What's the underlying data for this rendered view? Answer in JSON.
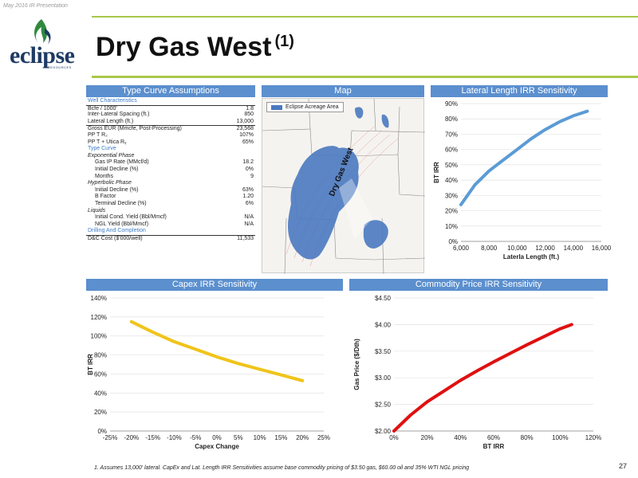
{
  "header": {
    "date_label": "May 2016 IR Presentation",
    "title": "Dry Gas West",
    "title_note": "(1)",
    "logo_text": "eclipse",
    "logo_sub": "RESOURCES"
  },
  "panels": {
    "type_curve": "Type Curve Assumptions",
    "map": "Map",
    "lateral": "Lateral Length IRR Sensitivity",
    "capex": "Capex IRR Sensitivity",
    "commodity": "Commodity Price IRR Sensitivity"
  },
  "type_curve": {
    "rows": [
      {
        "label": "Well Characteristics",
        "value": "",
        "kind": "section"
      },
      {
        "label": "Bcfe / 1000'",
        "value": "1.8",
        "kind": "line"
      },
      {
        "label": "Inter-Lateral Spacing (ft.)",
        "value": "850",
        "kind": "plain"
      },
      {
        "label": "Lateral Length (ft.)",
        "value": "13,000",
        "kind": "plain"
      },
      {
        "label": "Gross EUR (Mmcfe, Post-Processing)",
        "value": "23,568",
        "kind": "line"
      },
      {
        "label": "PP T R₂",
        "value": "107%",
        "kind": "plain"
      },
      {
        "label": "PP T + Utica Rᵧ",
        "value": "65%",
        "kind": "plain"
      },
      {
        "label": "Type Curve",
        "value": "",
        "kind": "section"
      },
      {
        "label": "Exponential Phase",
        "value": "",
        "kind": "sub"
      },
      {
        "label": "Gas IP Rate (MMcf/d)",
        "value": "18.2",
        "kind": "indent"
      },
      {
        "label": "Initial Decline (%)",
        "value": "0%",
        "kind": "indent"
      },
      {
        "label": "Months",
        "value": "9",
        "kind": "indent"
      },
      {
        "label": "Hyperbolic Phase",
        "value": "",
        "kind": "sub"
      },
      {
        "label": "Initial Decline (%)",
        "value": "63%",
        "kind": "indent"
      },
      {
        "label": "B Factor",
        "value": "1.20",
        "kind": "indent"
      },
      {
        "label": "Terminal Decline (%)",
        "value": "6%",
        "kind": "indent"
      },
      {
        "label": "Liquids",
        "value": "",
        "kind": "sub"
      },
      {
        "label": "Initial Cond. Yield (Bbl/Mmcf)",
        "value": "N/A",
        "kind": "indent"
      },
      {
        "label": "NGL Yield (Bbl/Mmcf)",
        "value": "N/A",
        "kind": "indent"
      },
      {
        "label": "Drilling And Completion",
        "value": "",
        "kind": "section"
      },
      {
        "label": "D&C Cost ($'000/well)",
        "value": "11,533",
        "kind": "line"
      }
    ]
  },
  "map": {
    "legend": "Eclipse Acreage Area",
    "area_label": "Dry Gas West",
    "colors": {
      "acreage": "#4a79c0",
      "county": "#8a8a8a",
      "contour": "#e08a8a"
    }
  },
  "chart_data": [
    {
      "type": "line",
      "title": "Lateral Length IRR Sensitivity",
      "xlabel": "Laterla Length (ft.)",
      "ylabel": "BT IRR",
      "x": [
        6000,
        7000,
        8000,
        9000,
        10000,
        11000,
        12000,
        13000,
        14000,
        15000
      ],
      "series": [
        {
          "values": [
            0.24,
            0.37,
            0.46,
            0.53,
            0.6,
            0.67,
            0.73,
            0.78,
            0.82,
            0.85
          ]
        }
      ],
      "xlim": [
        6000,
        16000
      ],
      "ylim": [
        0,
        0.9
      ],
      "xticks": [
        "6,000",
        "8,000",
        "10,000",
        "12,000",
        "14,000",
        "16,000"
      ],
      "yticks": [
        "0%",
        "10%",
        "20%",
        "30%",
        "40%",
        "50%",
        "60%",
        "70%",
        "80%",
        "90%"
      ],
      "color": "#5b9bd5"
    },
    {
      "type": "line",
      "title": "Capex IRR Sensitivity",
      "xlabel": "Capex Change",
      "ylabel": "BT IRR",
      "x": [
        -0.2,
        -0.15,
        -0.1,
        -0.05,
        0,
        0.05,
        0.1,
        0.15,
        0.2
      ],
      "series": [
        {
          "values": [
            1.15,
            1.04,
            0.94,
            0.86,
            0.78,
            0.71,
            0.65,
            0.59,
            0.53
          ]
        }
      ],
      "xlim": [
        -0.25,
        0.25
      ],
      "ylim": [
        0,
        1.4
      ],
      "xticks": [
        "-25%",
        "-20%",
        "-15%",
        "-10%",
        "-5%",
        "0%",
        "5%",
        "10%",
        "15%",
        "20%",
        "25%"
      ],
      "yticks": [
        "0%",
        "20%",
        "40%",
        "60%",
        "80%",
        "100%",
        "120%",
        "140%"
      ],
      "color": "#f0c419"
    },
    {
      "type": "line",
      "title": "Commodity Price IRR Sensitivity",
      "xlabel": "BT IRR",
      "ylabel": "Gas Price ($/Dth)",
      "x": [
        0,
        0.1,
        0.2,
        0.3,
        0.4,
        0.5,
        0.6,
        0.7,
        0.8,
        0.9,
        1.0,
        1.07
      ],
      "series": [
        {
          "values": [
            2.0,
            2.3,
            2.55,
            2.75,
            2.95,
            3.13,
            3.3,
            3.46,
            3.62,
            3.77,
            3.92,
            4.0
          ]
        }
      ],
      "xlim": [
        0,
        1.2
      ],
      "ylim": [
        2.0,
        4.5
      ],
      "xticks": [
        "0%",
        "20%",
        "40%",
        "60%",
        "80%",
        "100%",
        "120%"
      ],
      "yticks": [
        "$2.00",
        "$2.50",
        "$3.00",
        "$3.50",
        "$4.00",
        "$4.50"
      ],
      "color": "#e01010"
    }
  ],
  "footer": {
    "note": "1.  Assumes 13,000' lateral. CapEx and Lat. Length IRR Sensitivities assume base commodity pricing of $3.50 gas, $60.00 oil and 35% WTI NGL pricing",
    "page": "27"
  }
}
